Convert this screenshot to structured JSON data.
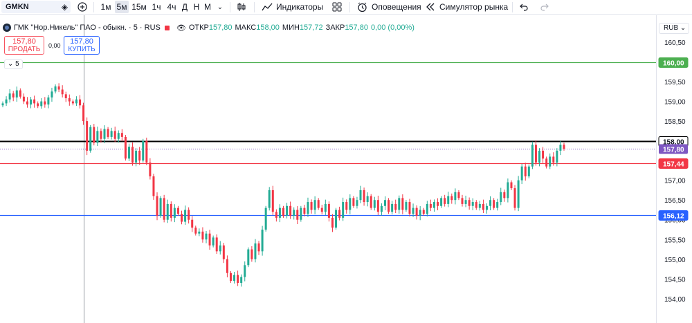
{
  "toolbar": {
    "symbol": "GMKN",
    "timeframes": [
      {
        "label": "1м",
        "active": false
      },
      {
        "label": "5м",
        "active": true
      },
      {
        "label": "15м",
        "active": false
      },
      {
        "label": "1ч",
        "active": false
      },
      {
        "label": "4ч",
        "active": false
      },
      {
        "label": "Д",
        "active": false
      },
      {
        "label": "Н",
        "active": false
      },
      {
        "label": "М",
        "active": false
      }
    ],
    "indicators_label": "Индикаторы",
    "alerts_label": "Оповещения",
    "replay_label": "Симулятор рынка"
  },
  "legend": {
    "title": "ГМК \"Нор.Никель\" ПАО - обыкн. · 5 · RUS",
    "open_label": "ОТКР",
    "open": "157,80",
    "high_label": "МАКС",
    "high": "158,00",
    "low_label": "МИН",
    "low": "157,72",
    "close_label": "ЗАКР",
    "close": "157,80",
    "change": "0,00 (0,00%)"
  },
  "trade": {
    "sell_price": "157,80",
    "sell_label": "ПРОДАТЬ",
    "spread": "0,00",
    "buy_price": "157,80",
    "buy_label": "КУПИТЬ"
  },
  "interval_badge": "5",
  "currency": "RUB",
  "colors": {
    "up": "#22ab94",
    "down": "#f23645",
    "line_160": "#4caf50",
    "line_158": "#000000",
    "line_15744": "#f23645",
    "line_15612": "#2962ff",
    "last_price": "#7e57c2"
  },
  "chart_data": {
    "type": "candlestick",
    "y_ticks": [
      "160,50",
      "160,00",
      "159,50",
      "159,00",
      "158,50",
      "158,00",
      "157,50",
      "157,00",
      "156,50",
      "156,00",
      "155,50",
      "155,00",
      "154,50",
      "154,00"
    ],
    "ylim": [
      154.0,
      160.5
    ],
    "horizontal_levels": [
      {
        "value": 160.0,
        "label": "160,00",
        "color": "#4caf50"
      },
      {
        "value": 158.0,
        "label": "158,00",
        "color": "#000000"
      },
      {
        "value": 157.44,
        "label": "157,44",
        "color": "#f23645"
      },
      {
        "value": 156.12,
        "label": "156,12",
        "color": "#2962ff"
      }
    ],
    "last_price": {
      "value": 157.8,
      "label": "157,80"
    },
    "closes": [
      158.95,
      159.05,
      159.2,
      159.1,
      159.28,
      159.12,
      159.0,
      158.92,
      159.05,
      158.95,
      158.88,
      159.0,
      158.92,
      159.1,
      159.25,
      159.38,
      159.3,
      159.18,
      159.08,
      159.0,
      158.95,
      159.05,
      158.9,
      158.5,
      157.75,
      158.35,
      157.95,
      158.25,
      158.05,
      158.3,
      158.1,
      158.25,
      158.05,
      158.2,
      158.1,
      157.55,
      157.85,
      157.45,
      157.75,
      157.5,
      158.0,
      157.45,
      157.1,
      156.6,
      156.1,
      156.55,
      156.0,
      156.4,
      156.05,
      156.3,
      156.15,
      155.95,
      156.25,
      156.0,
      155.8,
      155.65,
      155.7,
      155.5,
      155.65,
      155.35,
      155.55,
      155.2,
      155.35,
      155.0,
      154.65,
      154.45,
      154.6,
      154.4,
      154.55,
      154.85,
      155.25,
      155.0,
      155.4,
      155.2,
      155.75,
      156.3,
      156.75,
      156.2,
      156.05,
      156.3,
      156.1,
      156.35,
      156.1,
      156.25,
      156.0,
      156.3,
      156.15,
      156.45,
      156.25,
      156.5,
      156.3,
      156.2,
      156.4,
      156.05,
      155.8,
      156.25,
      156.05,
      156.45,
      156.25,
      156.55,
      156.35,
      156.5,
      156.75,
      156.45,
      156.6,
      156.3,
      156.5,
      156.2,
      156.35,
      156.5,
      156.2,
      156.4,
      156.25,
      156.55,
      156.25,
      156.45,
      156.15,
      156.3,
      156.1,
      156.25,
      156.15,
      156.4,
      156.3,
      156.45,
      156.35,
      156.55,
      156.4,
      156.6,
      156.5,
      156.7,
      156.55,
      156.4,
      156.5,
      156.35,
      156.45,
      156.3,
      156.4,
      156.25,
      156.35,
      156.5,
      156.3,
      156.45,
      156.7,
      156.55,
      156.95,
      156.8,
      156.3,
      157.0,
      157.35,
      157.1,
      157.35,
      157.9,
      157.45,
      157.75,
      157.55,
      157.35,
      157.6,
      157.45,
      157.75,
      157.9,
      157.8
    ]
  }
}
